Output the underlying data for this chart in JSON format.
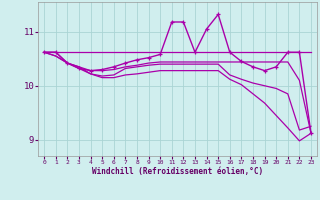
{
  "background_color": "#d0eeee",
  "grid_color": "#aad4d4",
  "line_color": "#aa00aa",
  "title": "",
  "xlabel": "Windchill (Refroidissement éolien,°C)",
  "ylabel": "",
  "xlim": [
    -0.5,
    23.5
  ],
  "ylim": [
    8.7,
    11.55
  ],
  "yticks": [
    9,
    10,
    11
  ],
  "xticks": [
    0,
    1,
    2,
    3,
    4,
    5,
    6,
    7,
    8,
    9,
    10,
    11,
    12,
    13,
    14,
    15,
    16,
    17,
    18,
    19,
    20,
    21,
    22,
    23
  ],
  "lines": [
    {
      "x": [
        0,
        1,
        2,
        3,
        4,
        5,
        6,
        7,
        8,
        9,
        10,
        11,
        12,
        13,
        14,
        15,
        16,
        17,
        18,
        19,
        20,
        21,
        22,
        23
      ],
      "y": [
        10.62,
        10.62,
        10.42,
        10.32,
        10.28,
        10.3,
        10.35,
        10.42,
        10.48,
        10.52,
        10.58,
        11.18,
        11.18,
        10.62,
        11.05,
        11.32,
        10.62,
        10.45,
        10.35,
        10.28,
        10.35,
        10.62,
        10.62,
        9.12
      ],
      "marker": "+",
      "markersize": 3.5,
      "linewidth": 1.0
    },
    {
      "x": [
        0,
        1,
        2,
        3,
        4,
        5,
        6,
        7,
        8,
        9,
        10,
        11,
        12,
        13,
        14,
        15,
        16,
        17,
        18,
        19,
        20,
        21,
        22,
        23
      ],
      "y": [
        10.62,
        10.62,
        10.62,
        10.62,
        10.62,
        10.62,
        10.62,
        10.62,
        10.62,
        10.62,
        10.62,
        10.62,
        10.62,
        10.62,
        10.62,
        10.62,
        10.62,
        10.62,
        10.62,
        10.62,
        10.62,
        10.62,
        10.62,
        10.62
      ],
      "marker": null,
      "linewidth": 0.9
    },
    {
      "x": [
        0,
        1,
        2,
        3,
        4,
        5,
        6,
        7,
        8,
        9,
        10,
        11,
        12,
        13,
        14,
        15,
        16,
        17,
        18,
        19,
        20,
        21,
        22,
        23
      ],
      "y": [
        10.62,
        10.62,
        10.42,
        10.35,
        10.28,
        10.28,
        10.3,
        10.35,
        10.38,
        10.42,
        10.44,
        10.44,
        10.44,
        10.44,
        10.44,
        10.44,
        10.44,
        10.44,
        10.44,
        10.44,
        10.44,
        10.44,
        10.1,
        9.12
      ],
      "marker": null,
      "linewidth": 0.9
    },
    {
      "x": [
        0,
        1,
        2,
        3,
        4,
        5,
        6,
        7,
        8,
        9,
        10,
        11,
        12,
        13,
        14,
        15,
        16,
        17,
        18,
        19,
        20,
        21,
        22,
        23
      ],
      "y": [
        10.62,
        10.55,
        10.42,
        10.35,
        10.22,
        10.18,
        10.2,
        10.32,
        10.35,
        10.38,
        10.4,
        10.4,
        10.4,
        10.4,
        10.4,
        10.4,
        10.2,
        10.12,
        10.05,
        10.0,
        9.95,
        9.85,
        9.18,
        9.25
      ],
      "marker": null,
      "linewidth": 0.9
    },
    {
      "x": [
        0,
        1,
        2,
        3,
        4,
        5,
        6,
        7,
        8,
        9,
        10,
        11,
        12,
        13,
        14,
        15,
        16,
        17,
        18,
        19,
        20,
        21,
        22,
        23
      ],
      "y": [
        10.62,
        10.55,
        10.42,
        10.32,
        10.22,
        10.15,
        10.15,
        10.2,
        10.22,
        10.25,
        10.28,
        10.28,
        10.28,
        10.28,
        10.28,
        10.28,
        10.12,
        10.02,
        9.85,
        9.68,
        9.45,
        9.22,
        8.98,
        9.12
      ],
      "marker": null,
      "linewidth": 0.9
    }
  ]
}
